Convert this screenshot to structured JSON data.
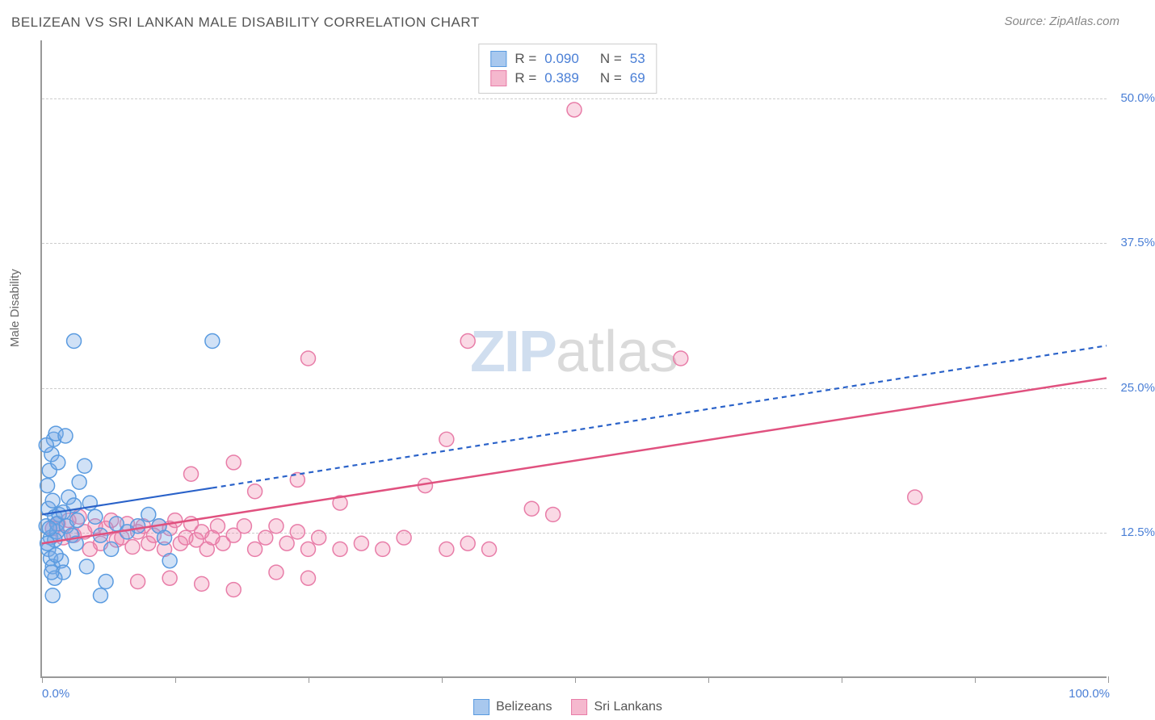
{
  "title": "BELIZEAN VS SRI LANKAN MALE DISABILITY CORRELATION CHART",
  "source": "Source: ZipAtlas.com",
  "y_axis_title": "Male Disability",
  "watermark_zip": "ZIP",
  "watermark_atlas": "atlas",
  "chart": {
    "type": "scatter",
    "xlim": [
      0,
      100
    ],
    "ylim": [
      0,
      55
    ],
    "x_start_label": "0.0%",
    "x_end_label": "100.0%",
    "x_ticks": [
      0,
      12.5,
      25,
      37.5,
      50,
      62.5,
      75,
      87.5,
      100
    ],
    "y_gridlines": [
      {
        "value": 12.5,
        "label": "12.5%"
      },
      {
        "value": 25.0,
        "label": "25.0%"
      },
      {
        "value": 37.5,
        "label": "37.5%"
      },
      {
        "value": 50.0,
        "label": "50.0%"
      }
    ],
    "background_color": "#ffffff",
    "grid_color": "#cccccc",
    "axis_color": "#999999",
    "tick_label_color": "#4a7fd6",
    "marker_radius": 9,
    "marker_stroke_width": 1.5,
    "series": [
      {
        "name": "Belizeans",
        "label": "Belizeans",
        "fill_color": "rgba(120,170,230,0.35)",
        "stroke_color": "#5a9be0",
        "swatch_fill": "#a8c8ee",
        "swatch_stroke": "#5a9be0",
        "r_value": "0.090",
        "n_value": "53",
        "regression": {
          "solid": {
            "x1": 0,
            "y1": 14.0,
            "x2": 16,
            "y2": 16.3
          },
          "dashed": {
            "x1": 16,
            "y1": 16.3,
            "x2": 100,
            "y2": 28.6
          },
          "color": "#2a62c9",
          "width": 2.2,
          "dash": "6,5"
        },
        "points": [
          [
            0.4,
            13.0
          ],
          [
            0.6,
            14.5
          ],
          [
            0.8,
            12.0
          ],
          [
            1.0,
            15.2
          ],
          [
            1.2,
            13.8
          ],
          [
            1.4,
            12.5
          ],
          [
            1.6,
            14.0
          ],
          [
            0.5,
            16.5
          ],
          [
            0.7,
            17.8
          ],
          [
            0.9,
            19.2
          ],
          [
            1.1,
            20.5
          ],
          [
            1.3,
            21.0
          ],
          [
            1.5,
            18.5
          ],
          [
            0.6,
            11.0
          ],
          [
            0.8,
            10.2
          ],
          [
            1.0,
            9.5
          ],
          [
            1.2,
            11.8
          ],
          [
            1.4,
            13.2
          ],
          [
            2.0,
            14.2
          ],
          [
            2.3,
            13.0
          ],
          [
            2.5,
            15.5
          ],
          [
            2.8,
            12.2
          ],
          [
            3.0,
            14.8
          ],
          [
            3.3,
            13.5
          ],
          [
            3.5,
            16.8
          ],
          [
            4.0,
            18.2
          ],
          [
            4.5,
            15.0
          ],
          [
            5.0,
            13.8
          ],
          [
            5.5,
            12.2
          ],
          [
            2.2,
            20.8
          ],
          [
            3.0,
            29.0
          ],
          [
            3.2,
            11.5
          ],
          [
            0.4,
            20.0
          ],
          [
            1.8,
            10.0
          ],
          [
            2.0,
            9.0
          ],
          [
            4.2,
            9.5
          ],
          [
            5.5,
            7.0
          ],
          [
            6.0,
            8.2
          ],
          [
            0.5,
            11.5
          ],
          [
            0.7,
            12.8
          ],
          [
            1.0,
            7.0
          ],
          [
            1.2,
            8.5
          ],
          [
            6.5,
            11.0
          ],
          [
            7.0,
            13.2
          ],
          [
            8.0,
            12.5
          ],
          [
            9.0,
            13.0
          ],
          [
            10.0,
            14.0
          ],
          [
            11.0,
            13.0
          ],
          [
            11.5,
            12.0
          ],
          [
            12.0,
            10.0
          ],
          [
            16.0,
            29.0
          ],
          [
            1.3,
            10.5
          ],
          [
            0.9,
            9.0
          ]
        ]
      },
      {
        "name": "Sri Lankans",
        "label": "Sri Lankans",
        "fill_color": "rgba(240,130,170,0.30)",
        "stroke_color": "#e87da8",
        "swatch_fill": "#f5b8ce",
        "swatch_stroke": "#e87da8",
        "r_value": "0.389",
        "n_value": "69",
        "regression": {
          "solid": {
            "x1": 0,
            "y1": 11.5,
            "x2": 100,
            "y2": 25.8
          },
          "dashed": null,
          "color": "#e0517f",
          "width": 2.5,
          "dash": null
        },
        "points": [
          [
            1.0,
            12.8
          ],
          [
            1.5,
            13.2
          ],
          [
            2.0,
            12.0
          ],
          [
            2.5,
            13.5
          ],
          [
            3.0,
            12.2
          ],
          [
            3.5,
            13.8
          ],
          [
            4.0,
            12.5
          ],
          [
            4.5,
            11.0
          ],
          [
            5.0,
            13.0
          ],
          [
            5.5,
            11.5
          ],
          [
            6.0,
            12.8
          ],
          [
            6.5,
            13.5
          ],
          [
            7.0,
            11.8
          ],
          [
            7.5,
            12.0
          ],
          [
            8.0,
            13.2
          ],
          [
            8.5,
            11.2
          ],
          [
            9.0,
            12.5
          ],
          [
            9.5,
            13.0
          ],
          [
            10.0,
            11.5
          ],
          [
            10.5,
            12.2
          ],
          [
            11.0,
            13.0
          ],
          [
            11.5,
            11.0
          ],
          [
            12.0,
            12.8
          ],
          [
            12.5,
            13.5
          ],
          [
            13.0,
            11.5
          ],
          [
            13.5,
            12.0
          ],
          [
            14.0,
            13.2
          ],
          [
            14.5,
            11.8
          ],
          [
            15.0,
            12.5
          ],
          [
            15.5,
            11.0
          ],
          [
            16.0,
            12.0
          ],
          [
            16.5,
            13.0
          ],
          [
            17.0,
            11.5
          ],
          [
            18.0,
            12.2
          ],
          [
            19.0,
            13.0
          ],
          [
            20.0,
            11.0
          ],
          [
            21.0,
            12.0
          ],
          [
            22.0,
            13.0
          ],
          [
            23.0,
            11.5
          ],
          [
            24.0,
            12.5
          ],
          [
            25.0,
            11.0
          ],
          [
            26.0,
            12.0
          ],
          [
            28.0,
            11.0
          ],
          [
            30.0,
            11.5
          ],
          [
            32.0,
            11.0
          ],
          [
            34.0,
            12.0
          ],
          [
            36.0,
            16.5
          ],
          [
            38.0,
            11.0
          ],
          [
            40.0,
            11.5
          ],
          [
            42.0,
            11.0
          ],
          [
            9.0,
            8.2
          ],
          [
            12.0,
            8.5
          ],
          [
            15.0,
            8.0
          ],
          [
            18.0,
            7.5
          ],
          [
            22.0,
            9.0
          ],
          [
            25.0,
            8.5
          ],
          [
            14.0,
            17.5
          ],
          [
            18.0,
            18.5
          ],
          [
            20.0,
            16.0
          ],
          [
            24.0,
            17.0
          ],
          [
            28.0,
            15.0
          ],
          [
            25.0,
            27.5
          ],
          [
            38.0,
            20.5
          ],
          [
            40.0,
            29.0
          ],
          [
            46.0,
            14.5
          ],
          [
            48.0,
            14.0
          ],
          [
            50.0,
            49.0
          ],
          [
            60.0,
            27.5
          ],
          [
            82.0,
            15.5
          ]
        ]
      }
    ]
  },
  "legend_top": {
    "r_label": "R =",
    "n_label": "N ="
  },
  "legend_bottom": {
    "items": [
      "Belizeans",
      "Sri Lankans"
    ]
  }
}
